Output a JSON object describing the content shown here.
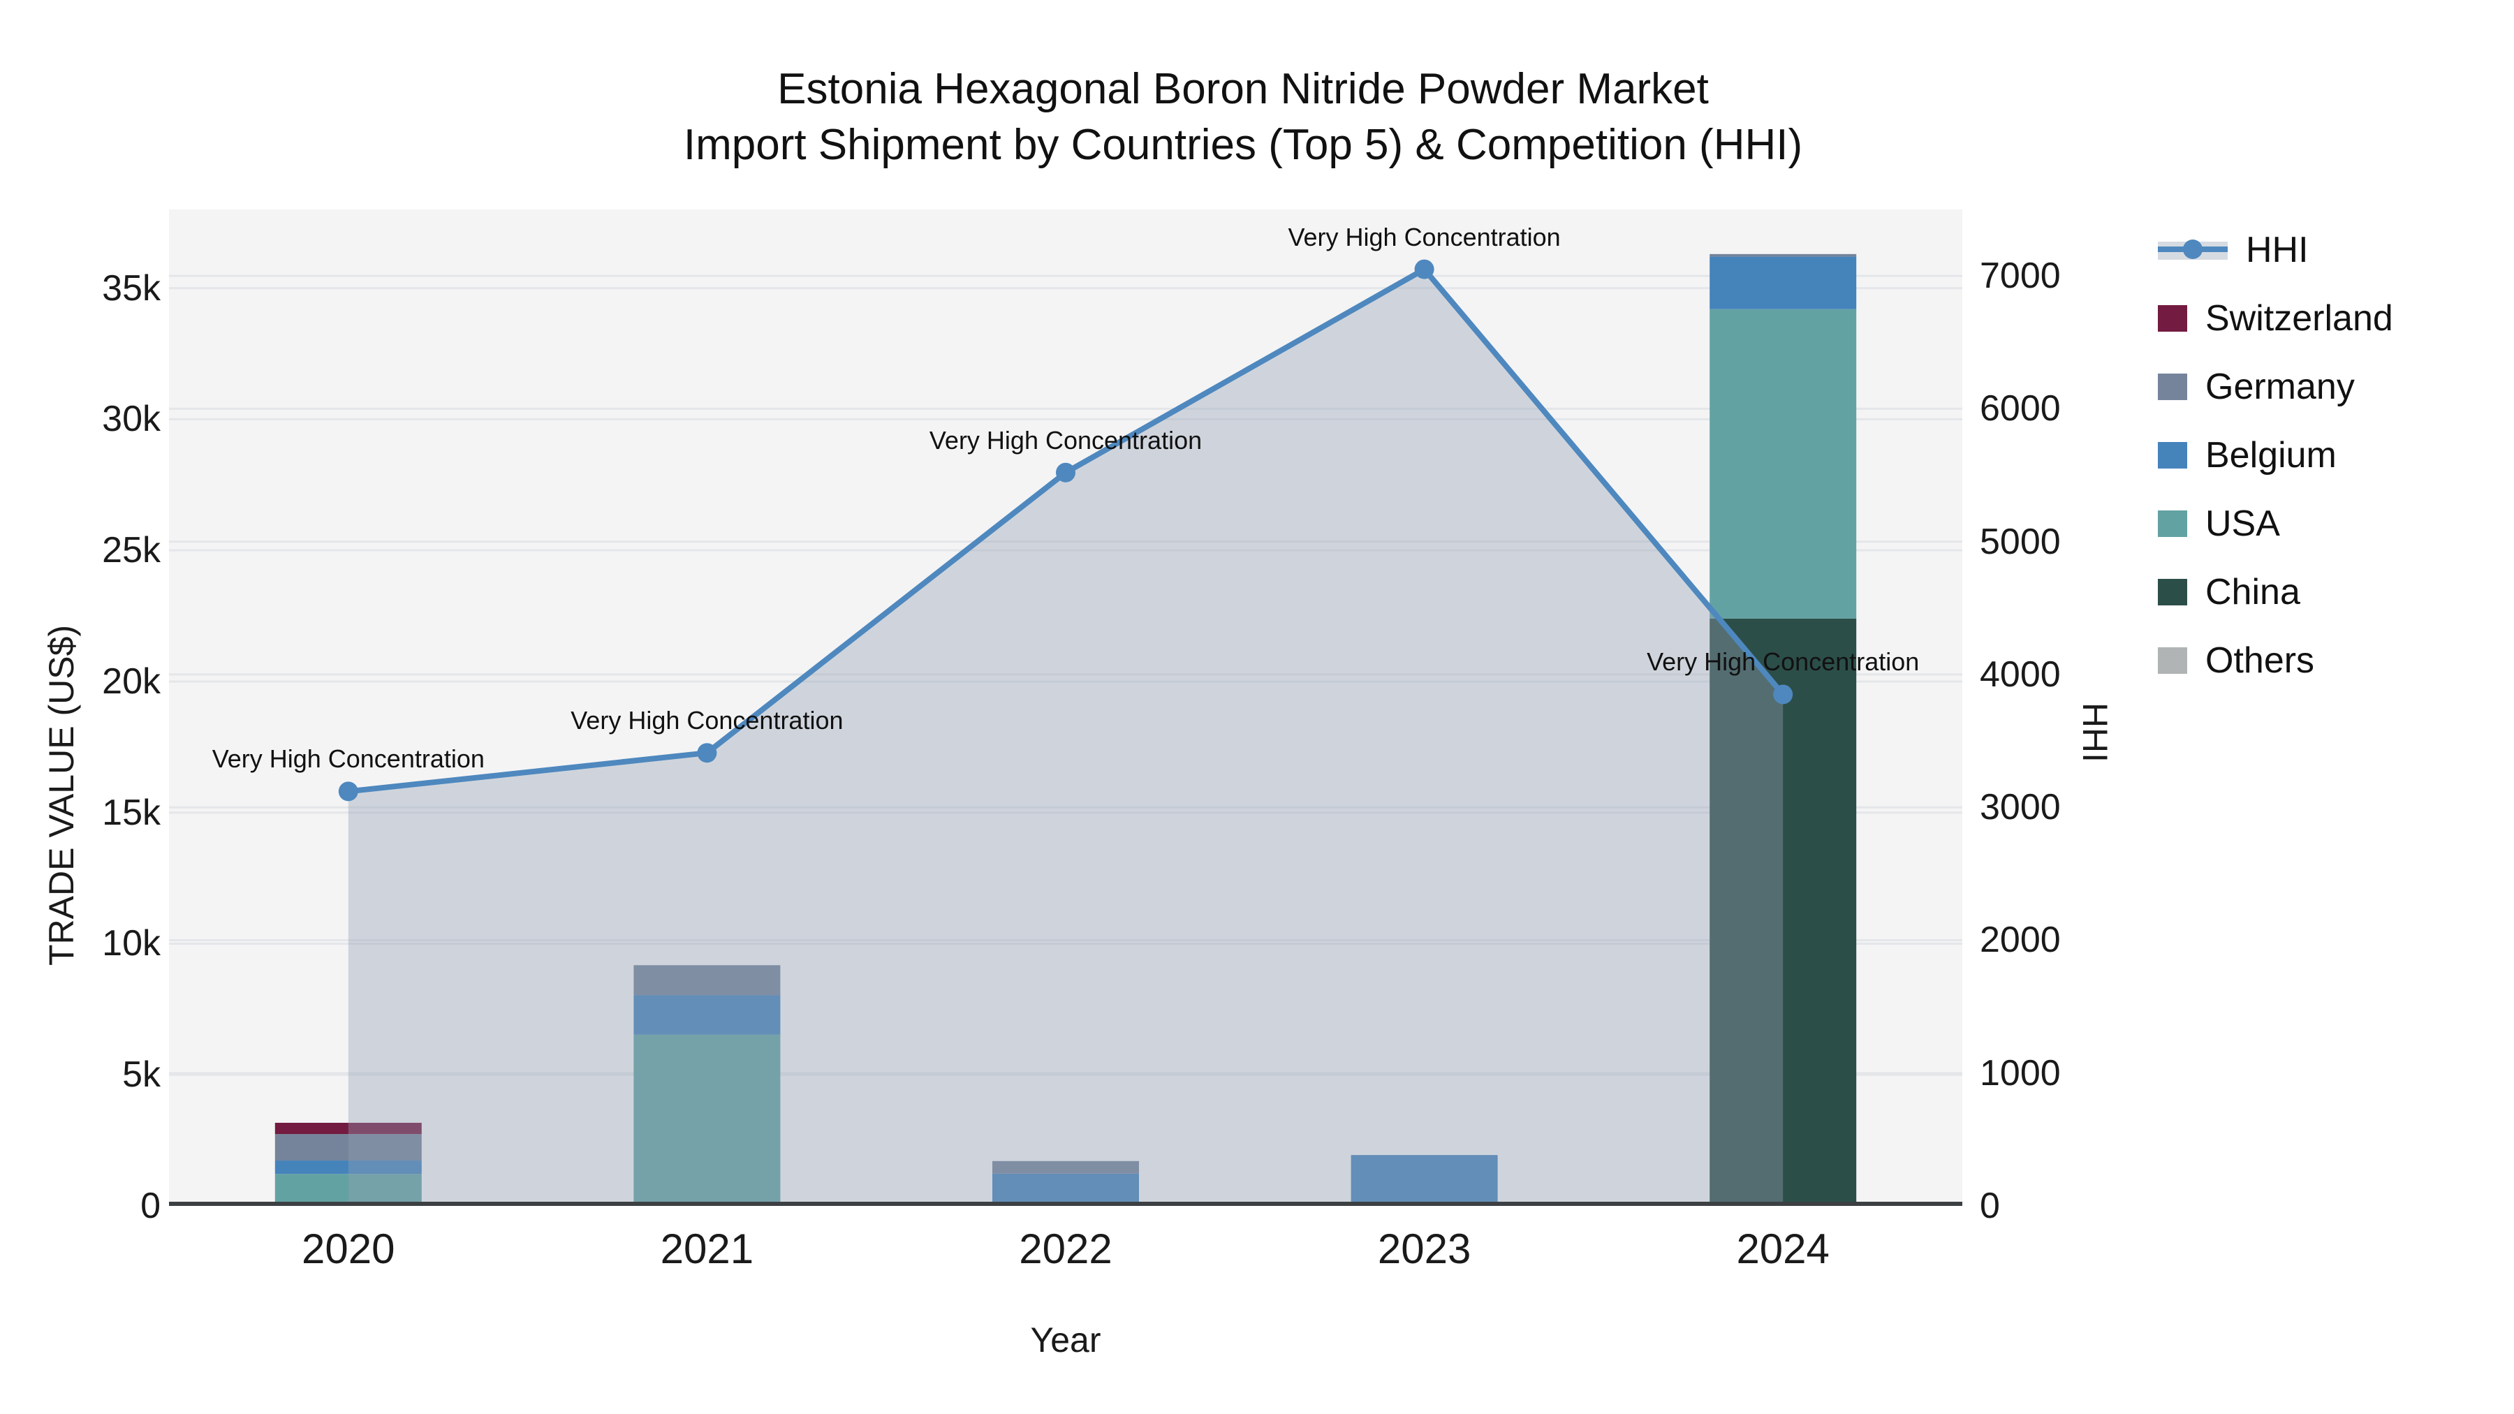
{
  "title": {
    "line1": "Estonia Hexagonal Boron Nitride Powder Market",
    "line2": "Import Shipment by Countries (Top 5) & Competition (HHI)"
  },
  "chart_data": {
    "type": "combo: stacked-bar + line",
    "title": "Estonia Hexagonal Boron Nitride Powder Market Import Shipment by Countries (Top 5) & Competition (HHI)",
    "x": {
      "label": "Year",
      "categories": [
        "2020",
        "2021",
        "2022",
        "2023",
        "2024"
      ]
    },
    "y_left": {
      "label": "TRADE VALUE (US$)",
      "tick_labels": [
        "0",
        "5k",
        "10k",
        "15k",
        "20k",
        "25k",
        "30k",
        "35k"
      ],
      "tick_values": [
        0,
        5000,
        10000,
        15000,
        20000,
        25000,
        30000,
        35000
      ],
      "axis_max": 38000
    },
    "y_right": {
      "label": "HHI",
      "tick_labels": [
        "0",
        "1000",
        "2000",
        "3000",
        "4000",
        "5000",
        "6000",
        "7000"
      ],
      "tick_values": [
        0,
        1000,
        2000,
        3000,
        4000,
        5000,
        6000,
        7000
      ],
      "axis_max": 7500
    },
    "bar_series": [
      {
        "name": "China",
        "color": "#2C4E49",
        "values": [
          0,
          130,
          0,
          0,
          22400
        ]
      },
      {
        "name": "USA",
        "color": "#63A2A3",
        "values": [
          1220,
          6400,
          110,
          0,
          11800
        ]
      },
      {
        "name": "Belgium",
        "color": "#4583BB",
        "values": [
          510,
          1500,
          1120,
          1940,
          2000
        ]
      },
      {
        "name": "Germany",
        "color": "#75849B",
        "values": [
          1010,
          1150,
          480,
          0,
          100
        ]
      },
      {
        "name": "Switzerland",
        "color": "#731B40",
        "values": [
          430,
          0,
          0,
          0,
          0
        ]
      },
      {
        "name": "Others",
        "color": "#B0B4B5",
        "values": [
          0,
          0,
          0,
          0,
          0
        ]
      }
    ],
    "line_series": {
      "name": "HHI",
      "color": "#4E88BE",
      "area_color": "rgba(148,160,178,0.38)",
      "values": [
        3120,
        3410,
        5520,
        7050,
        3850
      ]
    },
    "annotations": [
      {
        "x_index": 0,
        "text": "Very High Concentration"
      },
      {
        "x_index": 1,
        "text": "Very High Concentration"
      },
      {
        "x_index": 2,
        "text": "Very High Concentration"
      },
      {
        "x_index": 3,
        "text": "Very High Concentration"
      },
      {
        "x_index": 4,
        "text": "Very High Concentration"
      }
    ],
    "legend": [
      "HHI",
      "Switzerland",
      "Germany",
      "Belgium",
      "USA",
      "China",
      "Others"
    ],
    "style": {
      "plot_bg": "#f4f4f5",
      "gridline": "#e4e6e9",
      "axis_line": "#3c4043",
      "grid_on": true,
      "legend_position": "right"
    }
  }
}
